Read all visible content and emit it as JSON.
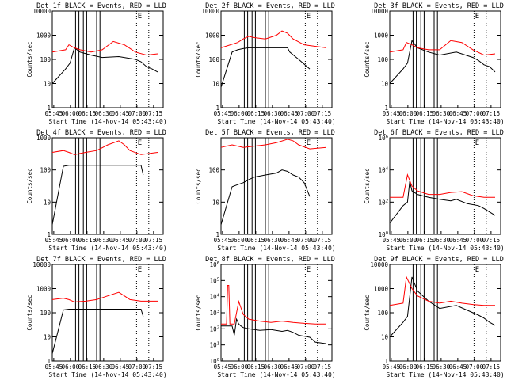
{
  "xlabel": "Start Time (14-Nov-14 05:43:40)",
  "ylabel": "Counts/sec",
  "x_ticks": [
    "05:45",
    "06:00",
    "06:15",
    "06:30",
    "06:45",
    "07:00",
    "07:15"
  ],
  "colors": {
    "events": "#000000",
    "lld": "#ff0000",
    "axes": "#000000",
    "background": "#ffffff"
  },
  "chart_data": [
    {
      "type": "line",
      "title": "Det 1f BLACK = Events, RED = LLD",
      "ylim": [
        1,
        10000
      ],
      "ytick_style": "plain",
      "yticks": [
        "1",
        "10",
        "100",
        "1000",
        "10000"
      ],
      "flag_label": "E",
      "series": [
        {
          "name": "Events",
          "color": "#000000",
          "x": [
            0,
            12,
            16,
            20,
            25,
            35,
            45,
            60,
            75,
            80,
            85,
            90,
            95
          ],
          "y": [
            10,
            40,
            70,
            300,
            200,
            150,
            120,
            130,
            100,
            80,
            50,
            40,
            30
          ]
        },
        {
          "name": "LLD",
          "color": "#ff0000",
          "x": [
            0,
            12,
            15,
            20,
            25,
            35,
            45,
            55,
            65,
            75,
            85,
            95
          ],
          "y": [
            200,
            250,
            400,
            300,
            250,
            200,
            250,
            550,
            400,
            200,
            150,
            170
          ]
        }
      ]
    },
    {
      "type": "line",
      "title": "Det 2f BLACK = Events, RED = LLD",
      "ylim": [
        1,
        10000
      ],
      "ytick_style": "plain",
      "yticks": [
        "1",
        "10",
        "100",
        "1000",
        "10000"
      ],
      "flag_label": "E",
      "series": [
        {
          "name": "Events",
          "color": "#000000",
          "x": [
            0,
            10,
            15,
            20,
            25,
            35,
            45,
            55,
            60,
            62,
            70,
            80
          ],
          "y": [
            7,
            200,
            250,
            280,
            300,
            300,
            300,
            300,
            300,
            200,
            100,
            40
          ]
        },
        {
          "name": "LLD",
          "color": "#ff0000",
          "x": [
            0,
            15,
            20,
            25,
            30,
            40,
            50,
            55,
            60,
            65,
            75,
            95
          ],
          "y": [
            300,
            500,
            700,
            900,
            800,
            700,
            1000,
            1500,
            1200,
            700,
            400,
            300
          ]
        }
      ]
    },
    {
      "type": "line",
      "title": "Det 3f BLACK = Events, RED = LLD",
      "ylim": [
        1,
        10000
      ],
      "ytick_style": "plain",
      "yticks": [
        "1",
        "10",
        "100",
        "1000",
        "10000"
      ],
      "flag_label": "E",
      "series": [
        {
          "name": "Events",
          "color": "#000000",
          "x": [
            0,
            12,
            16,
            20,
            25,
            35,
            45,
            60,
            75,
            80,
            85,
            90,
            95
          ],
          "y": [
            10,
            40,
            70,
            600,
            300,
            200,
            150,
            200,
            120,
            90,
            60,
            50,
            30
          ]
        },
        {
          "name": "LLD",
          "color": "#ff0000",
          "x": [
            0,
            12,
            15,
            20,
            25,
            35,
            45,
            55,
            65,
            75,
            85,
            95
          ],
          "y": [
            200,
            250,
            500,
            400,
            300,
            250,
            250,
            600,
            500,
            250,
            150,
            170
          ]
        }
      ]
    },
    {
      "type": "line",
      "title": "Det 4f BLACK = Events, RED = LLD",
      "ylim": [
        1,
        1000
      ],
      "ytick_style": "plain",
      "yticks": [
        "1",
        "10",
        "100",
        "1000"
      ],
      "flag_label": "E",
      "series": [
        {
          "name": "Events",
          "color": "#000000",
          "x": [
            0,
            10,
            15,
            20,
            30,
            40,
            50,
            60,
            70,
            80,
            82
          ],
          "y": [
            2,
            130,
            140,
            140,
            140,
            140,
            140,
            140,
            140,
            140,
            70
          ]
        },
        {
          "name": "LLD",
          "color": "#ff0000",
          "x": [
            0,
            10,
            15,
            20,
            30,
            40,
            50,
            60,
            65,
            70,
            80,
            95
          ],
          "y": [
            350,
            400,
            350,
            300,
            350,
            400,
            600,
            800,
            600,
            400,
            300,
            350
          ]
        }
      ]
    },
    {
      "type": "line",
      "title": "Det 5f BLACK = Events, RED = LLD",
      "ylim": [
        1,
        1000
      ],
      "ytick_style": "plain",
      "yticks": [
        "1",
        "10",
        "100"
      ],
      "flag_label": "E",
      "series": [
        {
          "name": "Events",
          "color": "#000000",
          "x": [
            0,
            10,
            15,
            20,
            25,
            30,
            40,
            50,
            55,
            60,
            65,
            70,
            75,
            80
          ],
          "y": [
            2,
            30,
            35,
            40,
            50,
            60,
            70,
            80,
            100,
            90,
            70,
            60,
            40,
            15
          ]
        },
        {
          "name": "LLD",
          "color": "#ff0000",
          "x": [
            0,
            10,
            15,
            20,
            30,
            40,
            50,
            60,
            65,
            70,
            80,
            95
          ],
          "y": [
            500,
            600,
            550,
            500,
            550,
            600,
            700,
            900,
            800,
            600,
            450,
            500
          ]
        }
      ]
    },
    {
      "type": "line",
      "title": "Det 6f BLACK = Events, RED = LLD",
      "ylim": [
        1,
        1000000
      ],
      "ytick_style": "power",
      "yticks": [
        "10^0",
        "10^2",
        "10^4",
        "10^6"
      ],
      "flag_label": "E",
      "series": [
        {
          "name": "Events",
          "color": "#000000",
          "x": [
            0,
            12,
            16,
            18,
            20,
            25,
            35,
            45,
            55,
            60,
            70,
            80,
            85,
            95
          ],
          "y": [
            5,
            60,
            100,
            2000,
            500,
            300,
            200,
            150,
            120,
            150,
            80,
            60,
            40,
            15
          ]
        },
        {
          "name": "LLD",
          "color": "#ff0000",
          "x": [
            0,
            12,
            16,
            20,
            25,
            35,
            45,
            55,
            65,
            75,
            85,
            95
          ],
          "y": [
            200,
            200,
            5000,
            1000,
            500,
            300,
            300,
            400,
            450,
            250,
            200,
            200
          ]
        }
      ]
    },
    {
      "type": "line",
      "title": "Det 7f BLACK = Events, RED = LLD",
      "ylim": [
        1,
        10000
      ],
      "ytick_style": "plain",
      "yticks": [
        "1",
        "10",
        "100",
        "1000",
        "10000"
      ],
      "flag_label": "E",
      "series": [
        {
          "name": "Events",
          "color": "#000000",
          "x": [
            0,
            10,
            15,
            20,
            30,
            40,
            50,
            60,
            70,
            80,
            82
          ],
          "y": [
            2,
            130,
            140,
            140,
            140,
            140,
            140,
            140,
            140,
            140,
            70
          ]
        },
        {
          "name": "LLD",
          "color": "#ff0000",
          "x": [
            0,
            10,
            15,
            20,
            30,
            40,
            50,
            60,
            65,
            70,
            80,
            95
          ],
          "y": [
            350,
            400,
            350,
            280,
            300,
            350,
            500,
            700,
            500,
            350,
            300,
            300
          ]
        }
      ]
    },
    {
      "type": "line",
      "title": "Det 8f BLACK = Events, RED = LLD",
      "ylim": [
        1,
        1000000
      ],
      "ytick_style": "power",
      "yticks": [
        "10^0",
        "10^1",
        "10^2",
        "10^3",
        "10^4",
        "10^5",
        "10^6"
      ],
      "flag_label": "E",
      "series": [
        {
          "name": "Events",
          "color": "#000000",
          "x": [
            0,
            10,
            12,
            14,
            16,
            18,
            20,
            25,
            35,
            45,
            55,
            60,
            65,
            70,
            80,
            85,
            95
          ],
          "y": [
            150,
            150,
            40,
            400,
            200,
            150,
            120,
            100,
            80,
            90,
            70,
            80,
            60,
            40,
            30,
            15,
            12
          ]
        },
        {
          "name": "LLD",
          "color": "#ff0000",
          "x": [
            0,
            5,
            6,
            7,
            8,
            10,
            12,
            16,
            20,
            25,
            35,
            45,
            55,
            65,
            75,
            85,
            95
          ],
          "y": [
            200,
            200,
            50000,
            50000,
            200,
            200,
            200,
            5000,
            800,
            400,
            300,
            250,
            300,
            250,
            220,
            200,
            200
          ]
        }
      ]
    },
    {
      "type": "line",
      "title": "Det 9f BLACK = Events, RED = LLD",
      "ylim": [
        1,
        10000
      ],
      "ytick_style": "plain",
      "yticks": [
        "1",
        "10",
        "100",
        "1000",
        "10000"
      ],
      "flag_label": "E",
      "series": [
        {
          "name": "Events",
          "color": "#000000",
          "x": [
            0,
            12,
            16,
            20,
            25,
            35,
            45,
            60,
            75,
            80,
            85,
            90,
            95
          ],
          "y": [
            10,
            40,
            70,
            3000,
            800,
            300,
            150,
            200,
            100,
            80,
            60,
            40,
            30
          ]
        },
        {
          "name": "LLD",
          "color": "#ff0000",
          "x": [
            0,
            12,
            15,
            20,
            25,
            35,
            45,
            55,
            65,
            75,
            85,
            95
          ],
          "y": [
            200,
            250,
            3000,
            1000,
            500,
            300,
            250,
            300,
            250,
            220,
            200,
            200
          ]
        }
      ]
    }
  ]
}
